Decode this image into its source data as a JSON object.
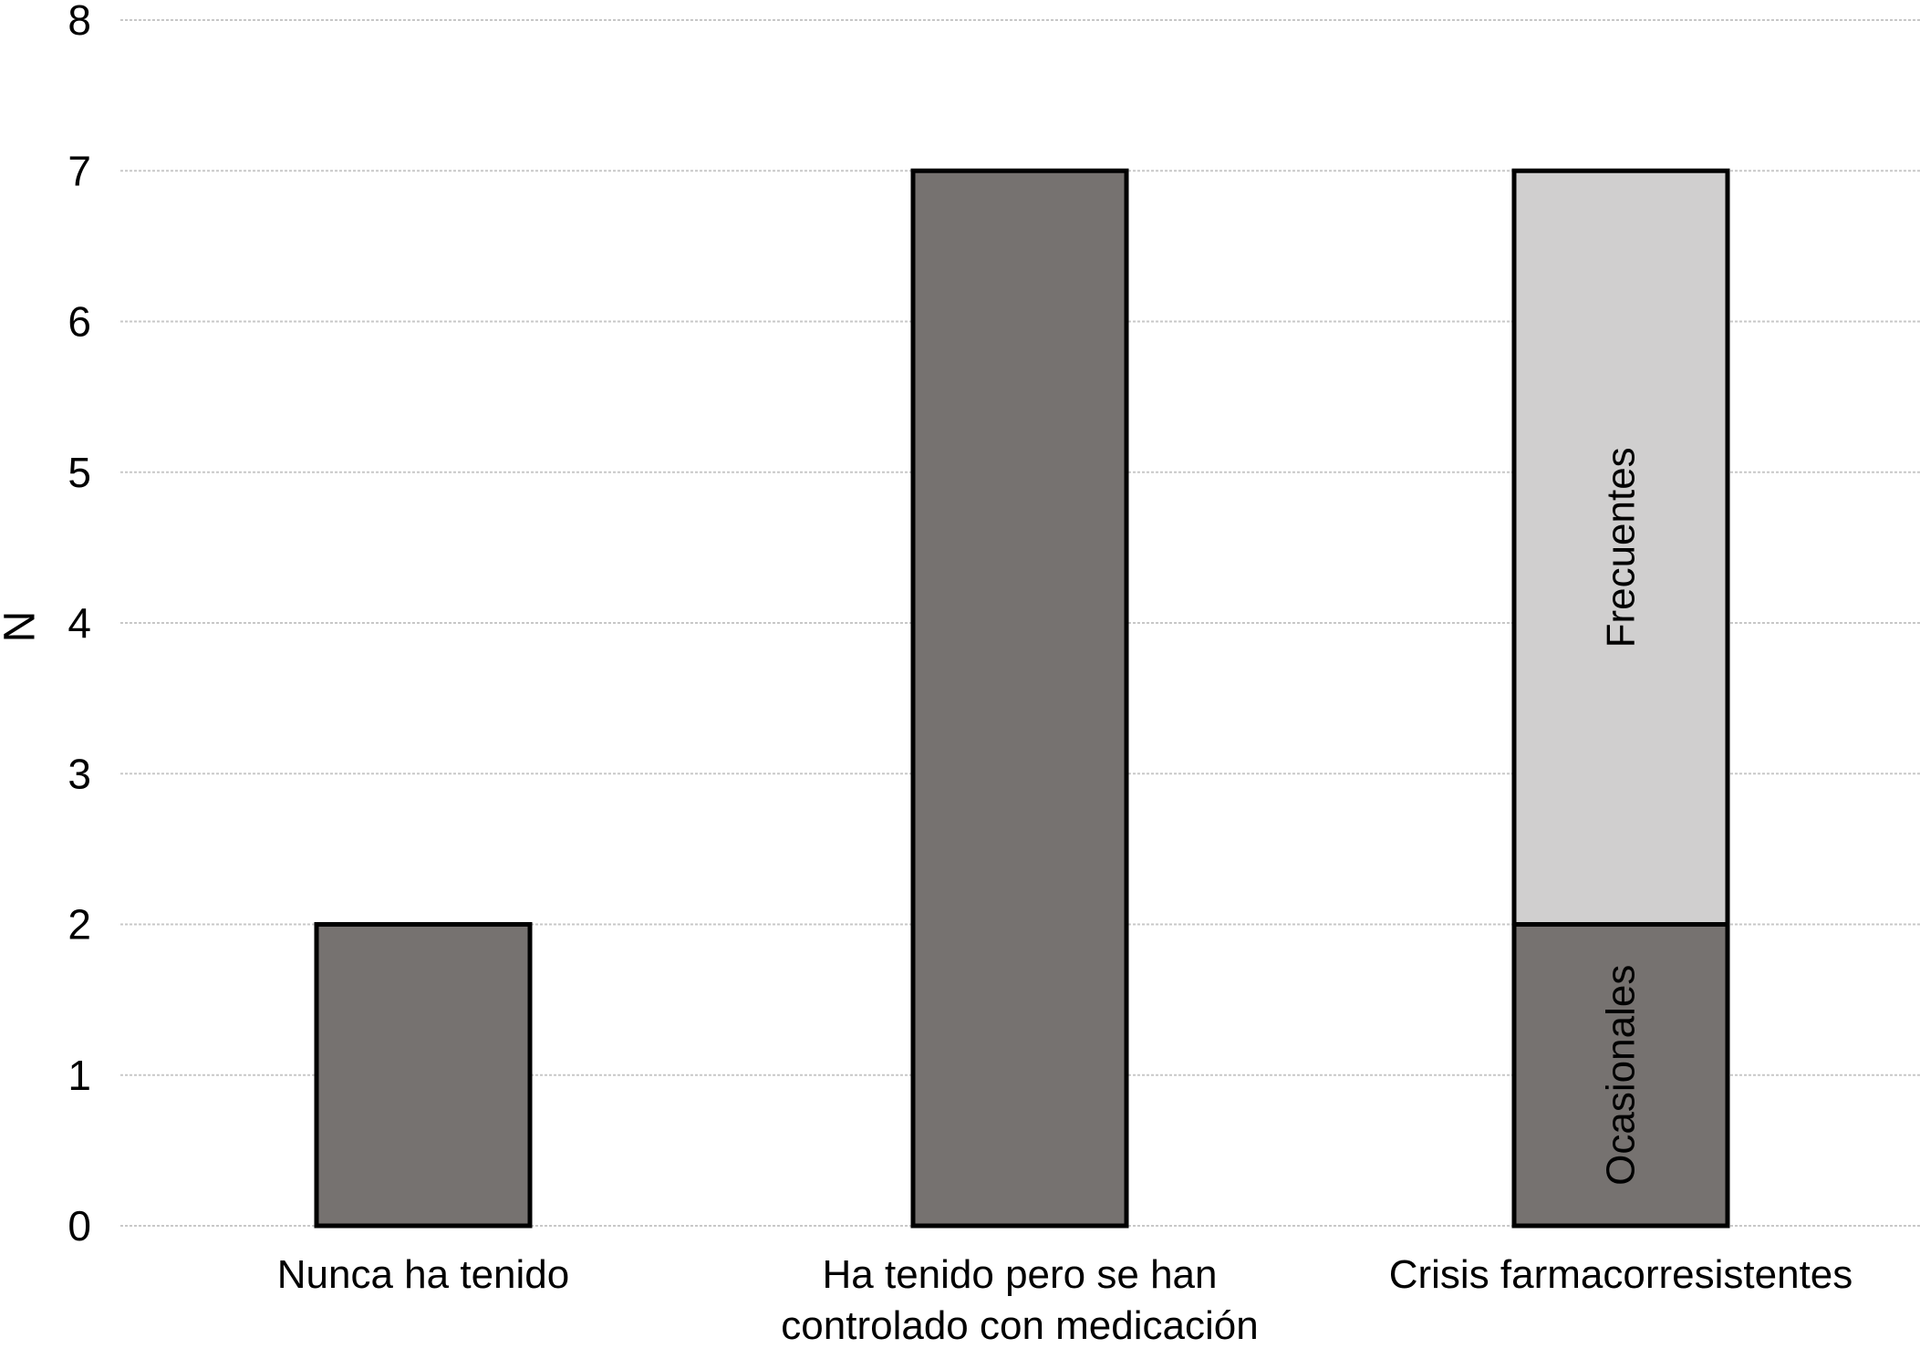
{
  "chart_data": {
    "type": "bar",
    "stacked": true,
    "title": "",
    "xlabel": "",
    "ylabel": "N",
    "ylim": [
      0,
      8
    ],
    "yticks": [
      0,
      1,
      2,
      3,
      4,
      5,
      6,
      7,
      8
    ],
    "grid": true,
    "categories": [
      [
        "Nunca ha tenido"
      ],
      [
        "Ha tenido pero se han",
        "controlado con medicación"
      ],
      [
        "Crisis farmacorresistentes"
      ]
    ],
    "bars": [
      {
        "segments": [
          {
            "value": 2,
            "label": "",
            "color": "#767270"
          }
        ]
      },
      {
        "segments": [
          {
            "value": 7,
            "label": "",
            "color": "#767270"
          }
        ]
      },
      {
        "segments": [
          {
            "value": 2,
            "label": "Ocasionales",
            "color": "#767270"
          },
          {
            "value": 5,
            "label": "Frecuentes",
            "color": "#d0cfcf"
          }
        ]
      }
    ]
  }
}
